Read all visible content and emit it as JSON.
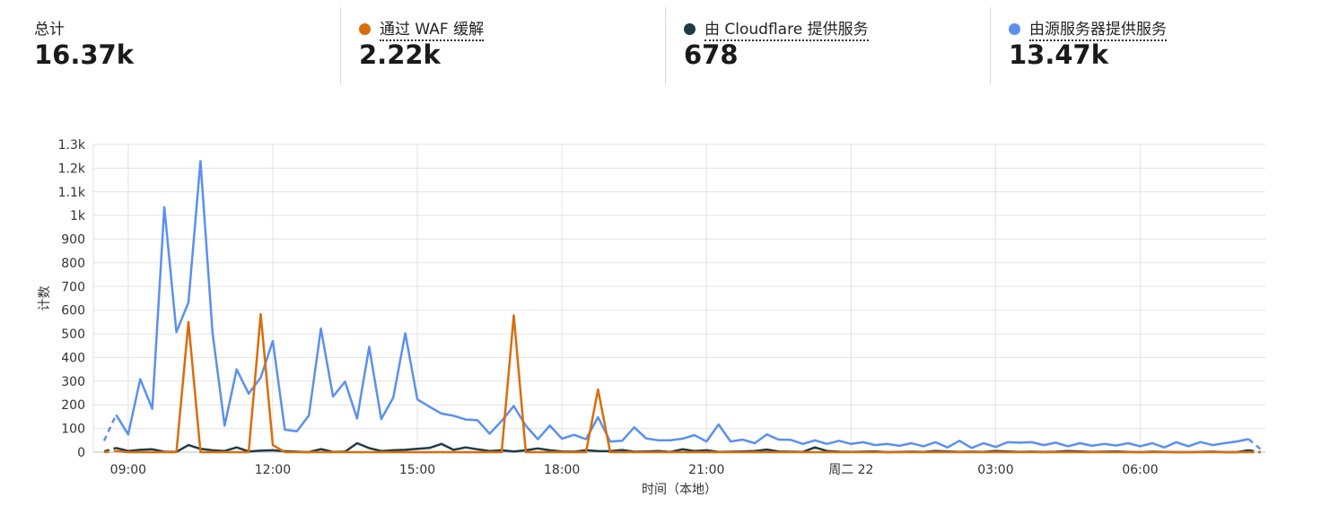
{
  "summary": {
    "total": {
      "label": "总计",
      "value": "16.37k"
    },
    "waf": {
      "label": "通过 WAF 缓解",
      "value": "2.22k",
      "color": "#d96d0c"
    },
    "cloudflare": {
      "label": "由 Cloudflare 提供服务",
      "value": "678",
      "color": "#1d3b47"
    },
    "origin": {
      "label": "由源服务器提供服务",
      "value": "13.47k",
      "color": "#5b90f0"
    }
  },
  "chart_data": {
    "type": "line",
    "xlabel": "时间（本地）",
    "ylabel": "计数",
    "ylim": [
      0,
      1300
    ],
    "yticks": [
      0,
      100,
      200,
      300,
      400,
      500,
      600,
      700,
      800,
      900,
      1000,
      1100,
      1200,
      1300
    ],
    "ytick_labels": [
      "0",
      "100",
      "200",
      "300",
      "400",
      "500",
      "600",
      "700",
      "800",
      "900",
      "1k",
      "1.1k",
      "1.2k",
      "1.3k"
    ],
    "xticks": [
      "09:00",
      "12:00",
      "15:00",
      "18:00",
      "21:00",
      "周二 22",
      "03:00",
      "06:00"
    ],
    "x_unit": "hour index, one value every 15 minutes, starting ≈08:30",
    "grid": true,
    "series": [
      {
        "name": "由源服务器提供服务",
        "color": "#5b90f0",
        "values": [
          48,
          158,
          75,
          308,
          183,
          1035,
          507,
          633,
          1230,
          505,
          112,
          350,
          247,
          315,
          470,
          95,
          88,
          155,
          522,
          235,
          298,
          142,
          445,
          140,
          230,
          502,
          223,
          192,
          163,
          154,
          138,
          135,
          78,
          132,
          195,
          112,
          55,
          112,
          57,
          73,
          55,
          148,
          45,
          48,
          105,
          58,
          50,
          50,
          57,
          72,
          45,
          117,
          45,
          53,
          38,
          75,
          53,
          52,
          35,
          50,
          35,
          48,
          35,
          42,
          30,
          35,
          27,
          38,
          25,
          42,
          20,
          48,
          18,
          38,
          22,
          42,
          40,
          42,
          30,
          40,
          25,
          38,
          27,
          35,
          28,
          38,
          25,
          38,
          20,
          42,
          25,
          43,
          30,
          38,
          45,
          55,
          12
        ]
      },
      {
        "name": "由 Cloudflare 提供服务",
        "color": "#1d3b47",
        "values": [
          3,
          18,
          5,
          10,
          12,
          2,
          1,
          30,
          14,
          8,
          5,
          20,
          3,
          7,
          8,
          4,
          2,
          0,
          13,
          1,
          2,
          38,
          17,
          5,
          8,
          10,
          14,
          18,
          35,
          10,
          20,
          12,
          5,
          8,
          3,
          8,
          16,
          8,
          3,
          2,
          8,
          5,
          4,
          9,
          2,
          3,
          5,
          1,
          12,
          5,
          8,
          1,
          2,
          3,
          5,
          11,
          3,
          2,
          1,
          20,
          5,
          2,
          1,
          2,
          3,
          0,
          1,
          2,
          1,
          5,
          3,
          1,
          2,
          1,
          5,
          3,
          1,
          2,
          1,
          2,
          5,
          3,
          1,
          2,
          3,
          1,
          0,
          2,
          1,
          0,
          0,
          1,
          2,
          0,
          0,
          8,
          0
        ]
      },
      {
        "name": "通过 WAF 缓解",
        "color": "#d96d0c",
        "values": [
          0,
          5,
          0,
          0,
          0,
          0,
          0,
          550,
          0,
          0,
          0,
          0,
          0,
          583,
          30,
          0,
          0,
          0,
          0,
          0,
          0,
          0,
          0,
          0,
          0,
          0,
          0,
          0,
          0,
          0,
          0,
          0,
          0,
          0,
          578,
          0,
          0,
          0,
          0,
          0,
          0,
          265,
          0,
          0,
          0,
          0,
          0,
          0,
          0,
          0,
          0,
          0,
          0,
          0,
          0,
          0,
          0,
          0,
          0,
          0,
          0,
          0,
          0,
          0,
          0,
          0,
          0,
          0,
          0,
          0,
          0,
          0,
          0,
          0,
          0,
          0,
          0,
          0,
          0,
          0,
          0,
          0,
          0,
          0,
          0,
          0,
          0,
          0,
          0,
          0,
          0,
          0,
          0,
          0,
          0,
          0,
          0
        ]
      }
    ]
  }
}
